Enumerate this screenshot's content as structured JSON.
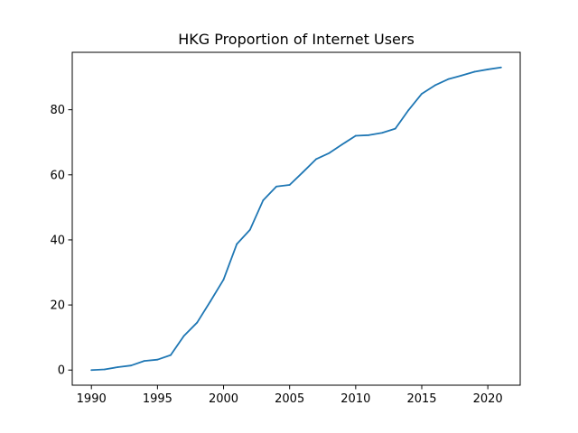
{
  "chart_data": {
    "type": "line",
    "title": "HKG Proportion of Internet Users",
    "xlabel": "",
    "ylabel": "",
    "xlim": [
      1988.55,
      2022.45
    ],
    "ylim": [
      -4.65,
      97.65
    ],
    "xticks": [
      1990,
      1995,
      2000,
      2005,
      2010,
      2015,
      2020
    ],
    "yticks": [
      0,
      20,
      40,
      60,
      80
    ],
    "grid": false,
    "series": [
      {
        "color": "#1f77b4",
        "x": [
          1990,
          1991,
          1992,
          1993,
          1994,
          1995,
          1996,
          1997,
          1998,
          1999,
          2000,
          2001,
          2002,
          2003,
          2004,
          2005,
          2006,
          2007,
          2008,
          2009,
          2010,
          2011,
          2012,
          2013,
          2014,
          2015,
          2016,
          2017,
          2018,
          2019,
          2020,
          2021
        ],
        "y": [
          0.0,
          0.2,
          0.9,
          1.4,
          2.8,
          3.2,
          4.6,
          10.5,
          14.6,
          21.1,
          27.8,
          38.7,
          43.1,
          52.2,
          56.4,
          56.9,
          60.8,
          64.8,
          66.7,
          69.4,
          72.0,
          72.2,
          72.9,
          74.2,
          79.9,
          84.9,
          87.5,
          89.4,
          90.5,
          91.7,
          92.4,
          93.0
        ]
      }
    ]
  }
}
